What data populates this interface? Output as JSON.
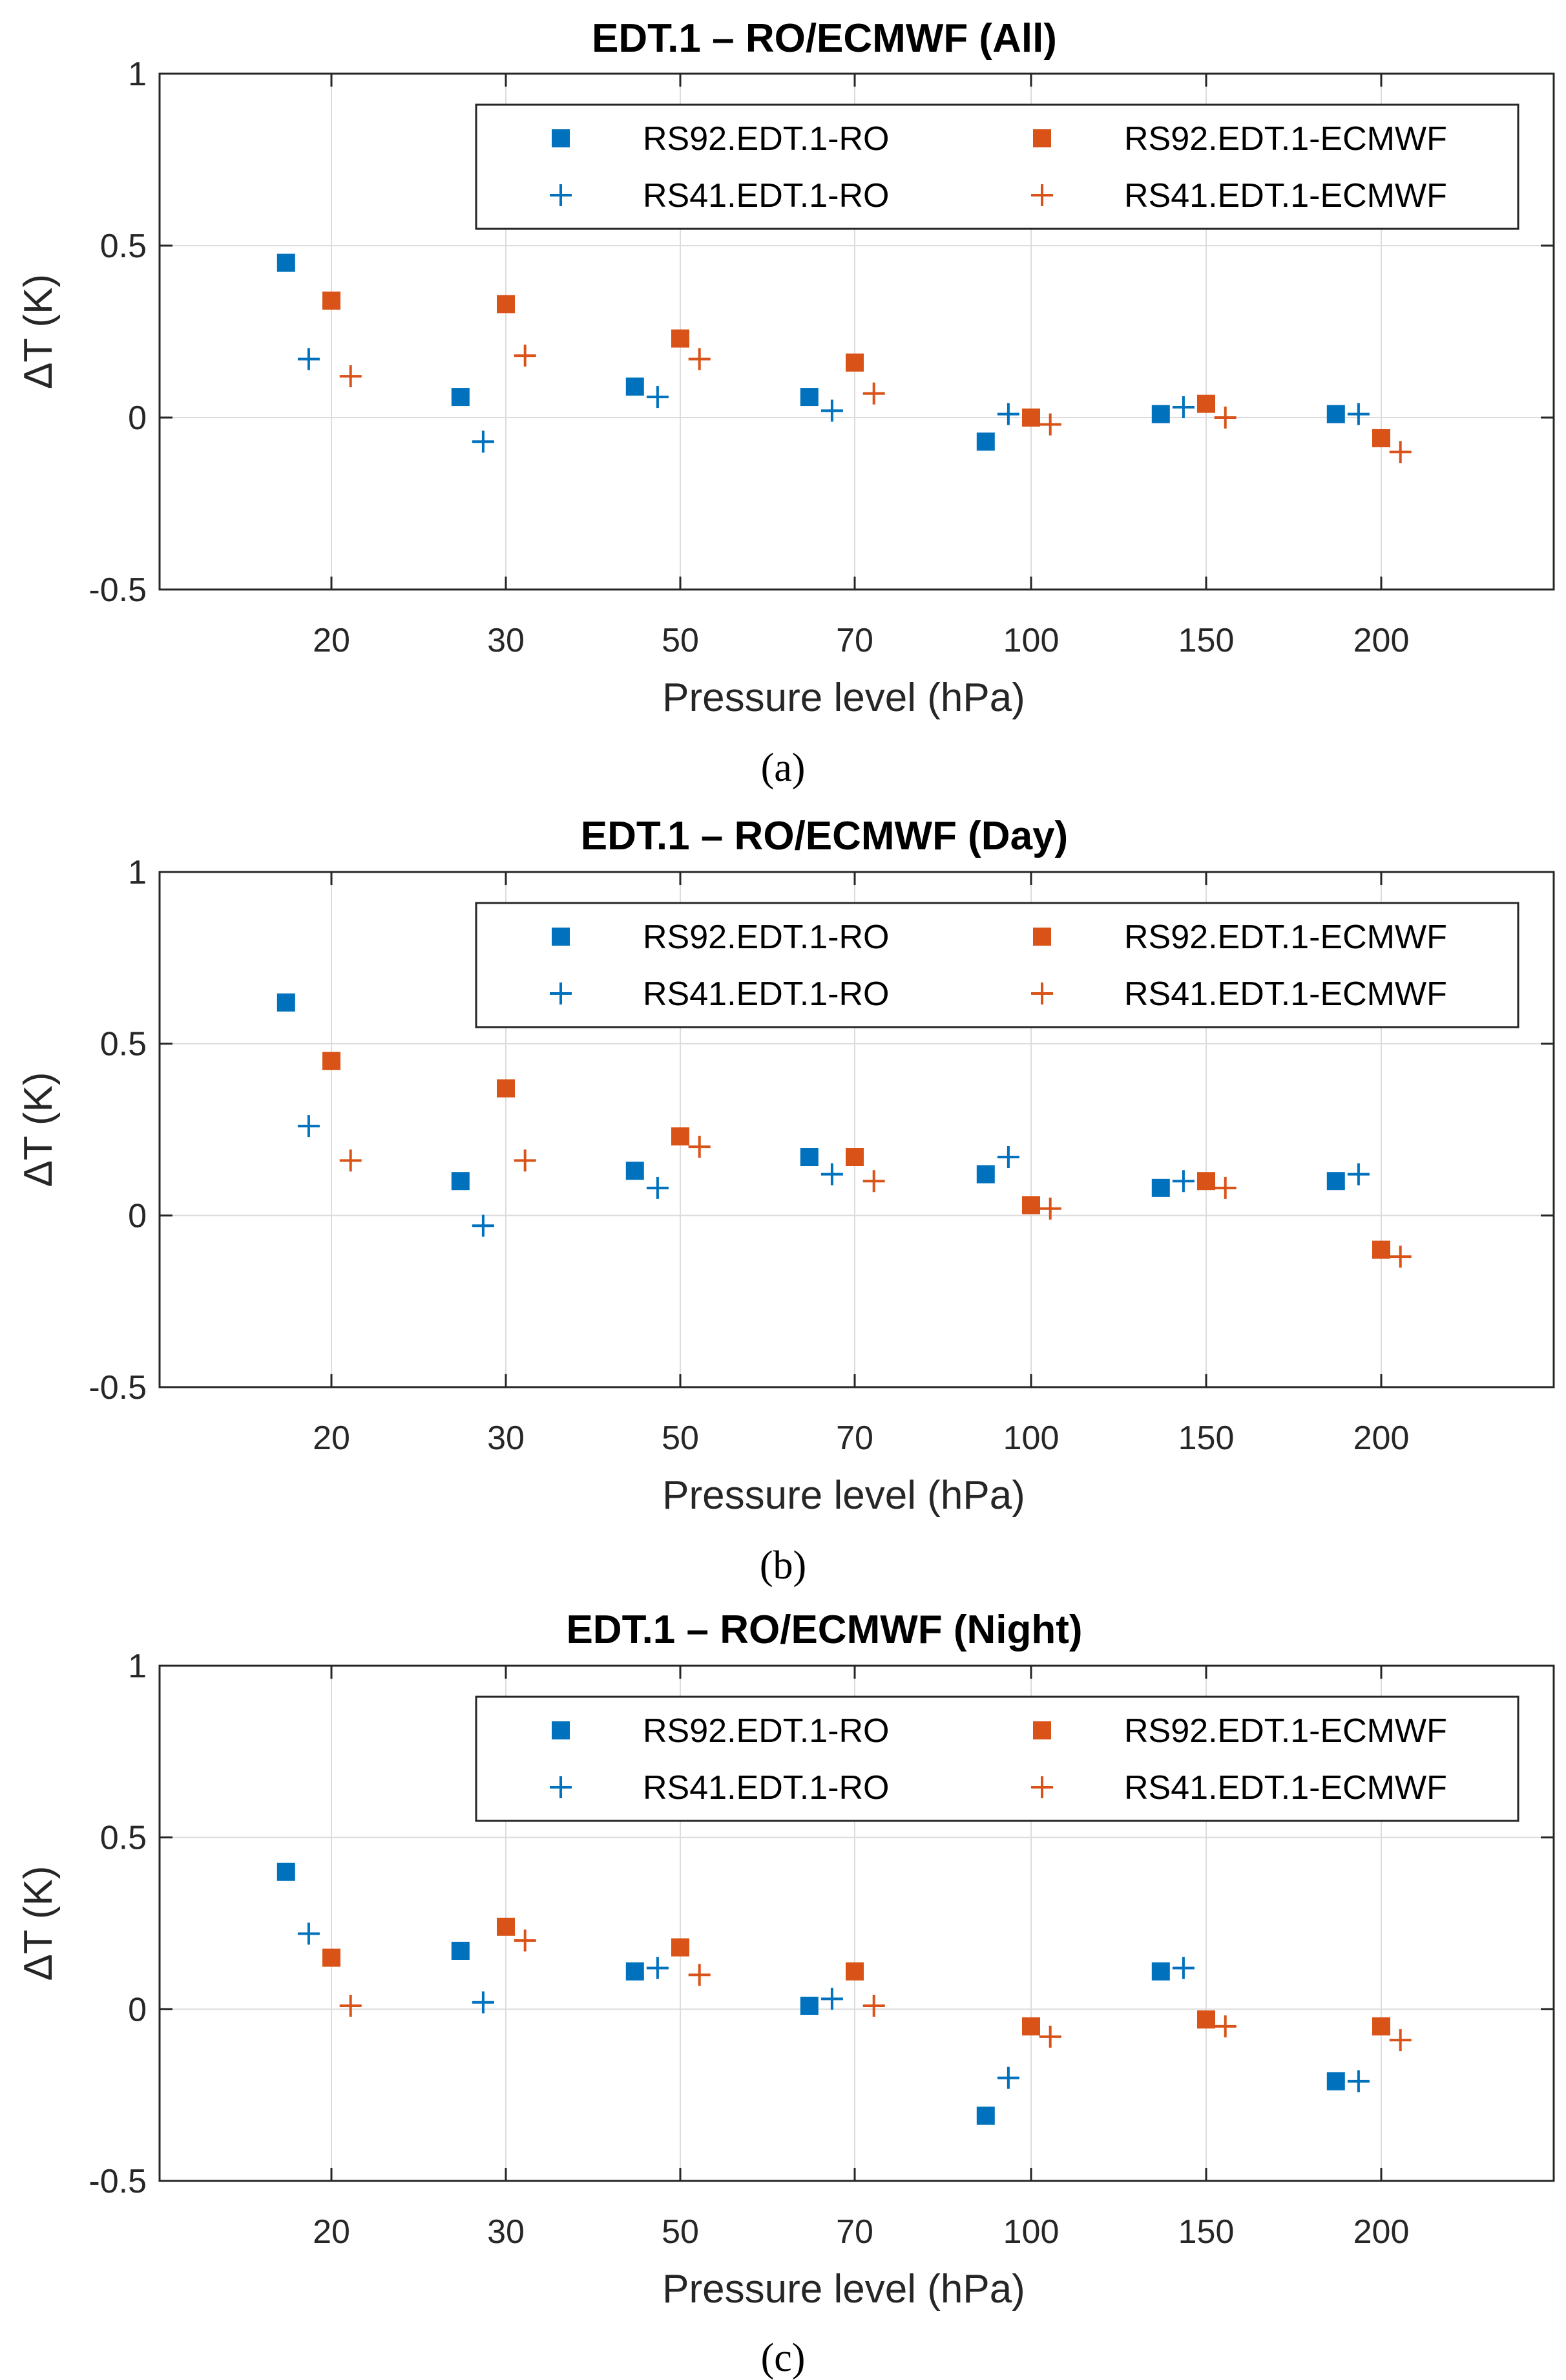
{
  "colors": {
    "blue": "#0072BD",
    "orange": "#D95319",
    "grid": "#dcdcdc",
    "axis": "#262626"
  },
  "chart_data": [
    {
      "type": "scatter",
      "title": "EDT.1 – RO/ECMWF (All)",
      "panel_label": "(a)",
      "xlabel": "Pressure level (hPa)",
      "ylabel": "ΔT (K)",
      "categories": [
        "20",
        "30",
        "50",
        "70",
        "100",
        "150",
        "200"
      ],
      "ylim": [
        -0.5,
        1
      ],
      "yticks": [
        "-0.5",
        "0",
        "0.5",
        "1"
      ],
      "grid": true,
      "legend_position": "top-right",
      "series": [
        {
          "name": "RS92.EDT.1-RO",
          "marker": "square",
          "color": "#0072BD",
          "offset": -0.26,
          "values": [
            0.45,
            0.06,
            0.09,
            0.06,
            -0.07,
            0.01,
            0.01
          ]
        },
        {
          "name": "RS41.EDT.1-RO",
          "marker": "plus",
          "color": "#0072BD",
          "offset": -0.13,
          "values": [
            0.17,
            -0.07,
            0.06,
            0.02,
            0.01,
            0.03,
            0.01
          ]
        },
        {
          "name": "RS92.EDT.1-ECMWF",
          "marker": "square",
          "color": "#D95319",
          "offset": 0.0,
          "values": [
            0.34,
            0.33,
            0.23,
            0.16,
            0.0,
            0.04,
            -0.06
          ]
        },
        {
          "name": "RS41.EDT.1-ECMWF",
          "marker": "plus",
          "color": "#D95319",
          "offset": 0.11,
          "values": [
            0.12,
            0.18,
            0.17,
            0.07,
            -0.02,
            0.0,
            -0.1
          ]
        }
      ]
    },
    {
      "type": "scatter",
      "title": "EDT.1 – RO/ECMWF (Day)",
      "panel_label": "(b)",
      "xlabel": "Pressure level (hPa)",
      "ylabel": "ΔT (K)",
      "categories": [
        "20",
        "30",
        "50",
        "70",
        "100",
        "150",
        "200"
      ],
      "ylim": [
        -0.5,
        1
      ],
      "yticks": [
        "-0.5",
        "0",
        "0.5",
        "1"
      ],
      "grid": true,
      "legend_position": "top-right",
      "series": [
        {
          "name": "RS92.EDT.1-RO",
          "marker": "square",
          "color": "#0072BD",
          "offset": -0.26,
          "values": [
            0.62,
            0.1,
            0.13,
            0.17,
            0.12,
            0.08,
            0.1
          ]
        },
        {
          "name": "RS41.EDT.1-RO",
          "marker": "plus",
          "color": "#0072BD",
          "offset": -0.13,
          "values": [
            0.26,
            -0.03,
            0.08,
            0.12,
            0.17,
            0.1,
            0.12
          ]
        },
        {
          "name": "RS92.EDT.1-ECMWF",
          "marker": "square",
          "color": "#D95319",
          "offset": 0.0,
          "values": [
            0.45,
            0.37,
            0.23,
            0.17,
            0.03,
            0.1,
            -0.1
          ]
        },
        {
          "name": "RS41.EDT.1-ECMWF",
          "marker": "plus",
          "color": "#D95319",
          "offset": 0.11,
          "values": [
            0.16,
            0.16,
            0.2,
            0.1,
            0.02,
            0.08,
            -0.12
          ]
        }
      ]
    },
    {
      "type": "scatter",
      "title": "EDT.1 – RO/ECMWF (Night)",
      "panel_label": "(c)",
      "xlabel": "Pressure level (hPa)",
      "ylabel": "ΔT (K)",
      "categories": [
        "20",
        "30",
        "50",
        "70",
        "100",
        "150",
        "200"
      ],
      "ylim": [
        -0.5,
        1
      ],
      "yticks": [
        "-0.5",
        "0",
        "0.5",
        "1"
      ],
      "grid": true,
      "legend_position": "top-right",
      "series": [
        {
          "name": "RS92.EDT.1-RO",
          "marker": "square",
          "color": "#0072BD",
          "offset": -0.26,
          "values": [
            0.4,
            0.17,
            0.11,
            0.01,
            -0.31,
            0.11,
            -0.21
          ]
        },
        {
          "name": "RS41.EDT.1-RO",
          "marker": "plus",
          "color": "#0072BD",
          "offset": -0.13,
          "values": [
            0.22,
            0.02,
            0.12,
            0.03,
            -0.2,
            0.12,
            -0.21
          ]
        },
        {
          "name": "RS92.EDT.1-ECMWF",
          "marker": "square",
          "color": "#D95319",
          "offset": 0.0,
          "values": [
            0.15,
            0.24,
            0.18,
            0.11,
            -0.05,
            -0.03,
            -0.05
          ]
        },
        {
          "name": "RS41.EDT.1-ECMWF",
          "marker": "plus",
          "color": "#D95319",
          "offset": 0.11,
          "values": [
            0.01,
            0.2,
            0.1,
            0.01,
            -0.08,
            -0.05,
            -0.09
          ]
        }
      ]
    }
  ]
}
